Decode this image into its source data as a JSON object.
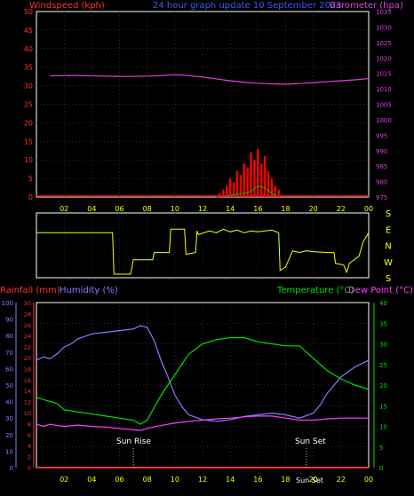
{
  "header": {
    "windspeed_label": "Windspeed (kph)",
    "title": "24 hour graph update 10 September 2023",
    "barometer_label": "Barometer (hpa)"
  },
  "colors": {
    "background": "#000000",
    "wind": "#ff0000",
    "gust_fill": "#ff0000",
    "wind_avg": "#00c000",
    "barometer": "#e040e0",
    "winddir": "#ffff00",
    "rainfall": "#ff3333",
    "humidity": "#8080ff",
    "temperature": "#00e000",
    "dewpoint": "#ff40ff",
    "axis_text": "#ffff00",
    "frame": "#ffffff"
  },
  "direction_labels": [
    "S",
    "E",
    "N",
    "W",
    "S"
  ],
  "lower_header": {
    "rainfall_label": "Rainfall (mm)",
    "humidity_label": "Humidity (%)",
    "temperature_label": "Temperature (°C)",
    "dewpoint_label": "Dew Point (°C)"
  },
  "annotations": {
    "sunrise": "Sun Rise",
    "sunset": "Sun Set",
    "sunset_bottom": "Sun Set"
  },
  "chart_data": [
    {
      "type": "line",
      "title": "24 hour graph update 10 September 2023",
      "xlabel": "",
      "x_ticks": [
        "02",
        "04",
        "06",
        "08",
        "10",
        "12",
        "14",
        "16",
        "18",
        "20",
        "22",
        "00"
      ],
      "ylabel_left": "Windspeed (kph)",
      "ylim_left": [
        0,
        50
      ],
      "yticks_left": [
        0,
        5,
        10,
        15,
        20,
        25,
        30,
        35,
        40,
        45,
        50
      ],
      "ylabel_right": "Barometer (hpa)",
      "ylim_right": [
        975,
        1035
      ],
      "yticks_right": [
        975,
        980,
        985,
        990,
        995,
        1000,
        1005,
        1010,
        1015,
        1020,
        1025,
        1030,
        1035
      ],
      "grid": true,
      "series": [
        {
          "name": "Barometer (hpa)",
          "axis": "right",
          "x": [
            1.0,
            2.0,
            3.0,
            4.0,
            5.0,
            6.0,
            7.0,
            8.0,
            9.0,
            10.0,
            11.0,
            12.0,
            13.0,
            14.0,
            15.0,
            16.0,
            17.0,
            18.0,
            19.0,
            20.0,
            21.0,
            22.0,
            23.0,
            24.0
          ],
          "values": [
            1014.2,
            1014.3,
            1014.3,
            1014.2,
            1014.1,
            1014.0,
            1014.0,
            1014.1,
            1014.3,
            1014.6,
            1014.3,
            1013.8,
            1013.2,
            1012.6,
            1012.1,
            1011.8,
            1011.6,
            1011.5,
            1011.7,
            1012.0,
            1012.3,
            1012.6,
            1012.9,
            1013.3
          ]
        },
        {
          "name": "Wind gust (kph)",
          "axis": "left",
          "type": "bar",
          "x": [
            13.0,
            13.25,
            13.5,
            13.75,
            14.0,
            14.25,
            14.5,
            14.75,
            15.0,
            15.25,
            15.5,
            15.75,
            16.0,
            16.25,
            16.5,
            16.75,
            17.0,
            17.25,
            17.5
          ],
          "values": [
            0,
            1,
            2,
            3,
            5,
            4,
            7,
            6,
            9,
            8,
            12,
            10,
            13,
            9,
            11,
            7,
            5,
            3,
            2
          ]
        },
        {
          "name": "Wind average (kph)",
          "axis": "left",
          "x": [
            13.0,
            14.0,
            15.0,
            15.5,
            16.0,
            16.5,
            17.0,
            17.5
          ],
          "values": [
            0,
            0.5,
            1.0,
            1.5,
            3.0,
            2.5,
            1.0,
            0
          ]
        }
      ]
    },
    {
      "type": "line",
      "title": "",
      "xlabel": "",
      "x_ticks": [
        "02",
        "04",
        "06",
        "08",
        "10",
        "12",
        "14",
        "16",
        "18",
        "20",
        "22",
        "00"
      ],
      "ylabel": "",
      "ylim": [
        0,
        360
      ],
      "ytick_labels": [
        "S",
        "E",
        "N",
        "W",
        "S"
      ],
      "grid": true,
      "series": [
        {
          "name": "Wind direction",
          "x": [
            0.0,
            5.5,
            5.6,
            6.8,
            7.0,
            8.4,
            8.5,
            9.6,
            9.7,
            10.7,
            10.8,
            11.5,
            11.6,
            11.7,
            12.5,
            13.0,
            13.5,
            14.0,
            14.5,
            15.0,
            15.5,
            16.0,
            17.0,
            17.5,
            17.6,
            18.0,
            18.5,
            19.0,
            19.5,
            20.0,
            21.0,
            21.5,
            21.6,
            22.2,
            22.4,
            22.5,
            22.6,
            23.3,
            23.6,
            24.0
          ],
          "values": [
            250,
            250,
            20,
            20,
            100,
            100,
            140,
            140,
            270,
            270,
            130,
            140,
            260,
            240,
            260,
            250,
            270,
            255,
            265,
            250,
            260,
            255,
            265,
            250,
            40,
            60,
            150,
            140,
            150,
            145,
            140,
            140,
            80,
            70,
            30,
            50,
            80,
            120,
            200,
            250
          ]
        }
      ]
    },
    {
      "type": "line",
      "title": "",
      "xlabel": "",
      "x_ticks": [
        "02",
        "04",
        "06",
        "08",
        "10",
        "12",
        "14",
        "16",
        "18",
        "20",
        "22",
        "00"
      ],
      "ylabel_left_outer": "Humidity (%)",
      "ylim_left_outer": [
        0,
        100
      ],
      "yticks_left_outer": [
        0,
        10,
        20,
        30,
        40,
        50,
        60,
        70,
        80,
        90,
        100
      ],
      "ylabel_left_inner": "Rainfall (mm)",
      "ylim_left_inner": [
        0,
        30
      ],
      "yticks_left_inner": [
        0,
        2,
        4,
        6,
        8,
        10,
        12,
        14,
        16,
        18,
        20,
        22,
        24,
        26,
        28,
        30
      ],
      "ylabel_right": "Temperature (°C)",
      "ylim_right": [
        0,
        40
      ],
      "yticks_right": [
        0,
        5,
        10,
        15,
        20,
        25,
        30,
        35,
        40
      ],
      "grid": true,
      "series": [
        {
          "name": "Humidity (%)",
          "axis": "left_outer",
          "x": [
            0.0,
            0.5,
            1.0,
            1.5,
            2.0,
            2.5,
            3.0,
            4.0,
            5.0,
            6.0,
            7.0,
            7.5,
            8.0,
            8.5,
            9.0,
            9.5,
            10.0,
            10.5,
            11.0,
            12.0,
            13.0,
            14.0,
            15.0,
            16.0,
            17.0,
            18.0,
            19.0,
            20.0,
            20.5,
            21.0,
            21.5,
            22.0,
            22.5,
            23.0,
            23.5,
            24.0
          ],
          "values": [
            65,
            67,
            66,
            69,
            73,
            75,
            78,
            81,
            82,
            83,
            84,
            86,
            85,
            77,
            65,
            55,
            44,
            37,
            32,
            29,
            28,
            29,
            31,
            32,
            33,
            32,
            30,
            33,
            38,
            45,
            50,
            55,
            58,
            61,
            63,
            65
          ]
        },
        {
          "name": "Temperature (°C)",
          "axis": "right",
          "x": [
            0.0,
            0.5,
            1.0,
            1.5,
            2.0,
            3.0,
            4.0,
            5.0,
            6.0,
            7.0,
            7.5,
            8.0,
            8.5,
            9.0,
            10.0,
            11.0,
            12.0,
            13.0,
            14.0,
            15.0,
            16.0,
            17.0,
            18.0,
            19.0,
            20.0,
            21.0,
            22.0,
            23.0,
            24.0
          ],
          "values": [
            17.0,
            16.5,
            16.0,
            15.5,
            14.0,
            13.5,
            13.0,
            12.5,
            12.0,
            11.5,
            10.5,
            11.5,
            14.5,
            17.5,
            22.5,
            27.5,
            30.0,
            31.0,
            31.5,
            31.5,
            30.5,
            30.0,
            29.5,
            29.5,
            26.5,
            23.5,
            21.5,
            20.0,
            19.0
          ]
        },
        {
          "name": "Dew Point (°C)",
          "axis": "right",
          "x": [
            0.0,
            0.5,
            1.0,
            1.5,
            2.0,
            3.0,
            4.0,
            5.0,
            6.0,
            7.0,
            7.5,
            8.0,
            9.0,
            10.0,
            11.0,
            12.0,
            13.0,
            14.0,
            15.0,
            16.0,
            17.0,
            18.0,
            19.0,
            20.0,
            21.0,
            22.0,
            23.0,
            24.0
          ],
          "values": [
            10.5,
            10.0,
            10.5,
            10.2,
            10.0,
            10.3,
            10.0,
            9.8,
            9.5,
            9.2,
            9.0,
            9.5,
            10.2,
            10.8,
            11.2,
            11.5,
            11.8,
            12.0,
            12.3,
            12.5,
            12.5,
            12.0,
            11.5,
            11.5,
            11.8,
            12.0,
            12.0,
            12.0
          ]
        },
        {
          "name": "Rainfall (mm)",
          "axis": "left_inner",
          "x": [
            0.0,
            24.0
          ],
          "values": [
            0,
            0
          ]
        }
      ],
      "markers": [
        {
          "label": "Sun Rise",
          "x": 7.0
        },
        {
          "label": "Sun Set",
          "x": 19.5
        }
      ]
    }
  ]
}
